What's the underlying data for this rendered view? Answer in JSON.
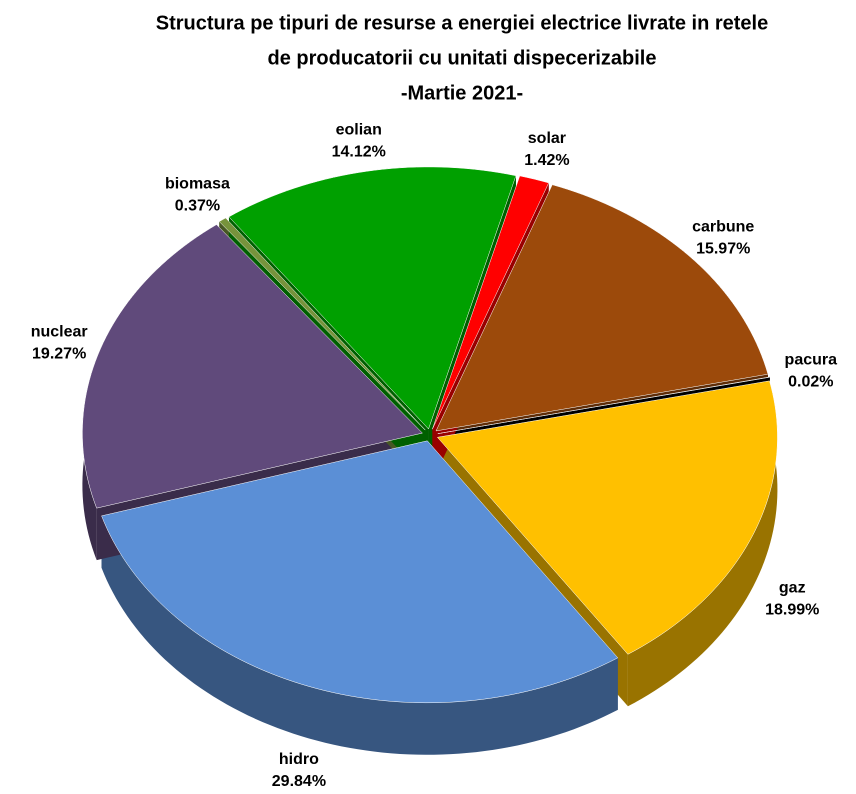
{
  "chart_data": {
    "type": "pie",
    "title": [
      "Structura pe tipuri de resurse a energiei electrice livrate in retele",
      "de producatorii cu unitati dispecerizabile",
      "-Martie 2021-"
    ],
    "categories": [
      "carbune",
      "pacura",
      "gaz",
      "hidro",
      "nuclear",
      "biomasa",
      "eolian",
      "solar"
    ],
    "values": [
      15.97,
      0.02,
      18.99,
      29.84,
      19.27,
      0.37,
      14.12,
      1.42
    ],
    "value_labels": [
      "15.97%",
      "0.02%",
      "18.99%",
      "29.84%",
      "19.27%",
      "0.37%",
      "14.12%",
      "1.42%"
    ],
    "colors": [
      "#9c4a0b",
      "#000000",
      "#ffc000",
      "#5b8fd6",
      "#604a7b",
      "#77933c",
      "#00a000",
      "#ff0000"
    ]
  }
}
